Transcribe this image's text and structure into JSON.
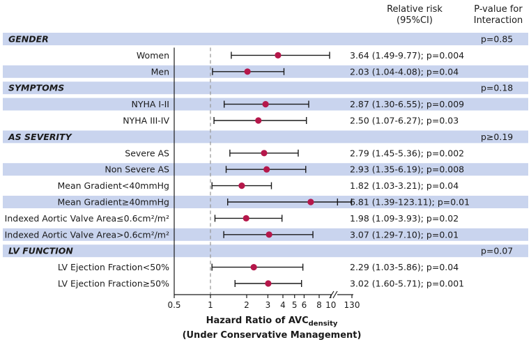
{
  "header": {
    "rr_line1": "Relative risk",
    "rr_line2": "(95%CI)",
    "p_line1": "P-value for",
    "p_line2": "Interaction"
  },
  "colors": {
    "band": "#c9d4ee",
    "marker": "#b5174a",
    "line": "#1a1a1a",
    "ref": "#9a9a9a"
  },
  "chart_data": {
    "type": "forest",
    "x_scale": "log",
    "xlim": [
      0.5,
      130
    ],
    "reference_line": 1,
    "xticks": [
      "0.5",
      "1",
      "2",
      "3",
      "4",
      "5",
      "6",
      "8",
      "10",
      "130"
    ],
    "xlabel_main": "Hazard Ratio of AVC",
    "xlabel_sub": "density",
    "xlabel_line2": "(Under Conservative Management)",
    "rows": [
      {
        "type": "group",
        "label": "GENDER",
        "p": "p=0.85"
      },
      {
        "type": "item",
        "label": "Women",
        "hr": 3.64,
        "lo": 1.49,
        "hi": 9.77,
        "text": "3.64 (1.49-9.77); p=0.004"
      },
      {
        "type": "item",
        "label": "Men",
        "hr": 2.03,
        "lo": 1.04,
        "hi": 4.08,
        "text": "2.03 (1.04-4.08); p=0.04"
      },
      {
        "type": "group",
        "label": "SYMPTOMS",
        "p": "p=0.18"
      },
      {
        "type": "item",
        "label": "NYHA I-II",
        "hr": 2.87,
        "lo": 1.3,
        "hi": 6.55,
        "text": "2.87 (1.30-6.55); p=0.009"
      },
      {
        "type": "item",
        "label": "NYHA III-IV",
        "hr": 2.5,
        "lo": 1.07,
        "hi": 6.27,
        "text": "2.50 (1.07-6.27); p=0.03"
      },
      {
        "type": "group",
        "label": "AS SEVERITY",
        "p": "p≥0.19"
      },
      {
        "type": "item",
        "label": "Severe AS",
        "hr": 2.79,
        "lo": 1.45,
        "hi": 5.36,
        "text": "2.79 (1.45-5.36); p=0.002"
      },
      {
        "type": "item",
        "label": "Non Severe AS",
        "hr": 2.93,
        "lo": 1.35,
        "hi": 6.19,
        "text": "2.93 (1.35-6.19); p=0.008"
      },
      {
        "type": "item",
        "label": "Mean Gradient<40mmHg",
        "hr": 1.82,
        "lo": 1.03,
        "hi": 3.21,
        "text": "1.82 (1.03-3.21); p=0.04"
      },
      {
        "type": "item",
        "label": "Mean Gradient≥40mmHg",
        "hr": 6.81,
        "lo": 1.39,
        "hi": 123.11,
        "text": "6.81 (1.39-123.11); p=0.01"
      },
      {
        "type": "item",
        "label": "Indexed Aortic Valve Area≤0.6cm²/m²",
        "hr": 1.98,
        "lo": 1.09,
        "hi": 3.93,
        "text": "1.98 (1.09-3.93); p=0.02"
      },
      {
        "type": "item",
        "label": "Indexed Aortic Valve Area>0.6cm²/m²",
        "hr": 3.07,
        "lo": 1.29,
        "hi": 7.1,
        "text": "3.07 (1.29-7.10); p=0.01"
      },
      {
        "type": "group",
        "label": "LV FUNCTION",
        "p": "p=0.07"
      },
      {
        "type": "item",
        "label": "LV Ejection Fraction<50%",
        "hr": 2.29,
        "lo": 1.03,
        "hi": 5.86,
        "text": "2.29 (1.03-5.86); p=0.04"
      },
      {
        "type": "item",
        "label": "LV Ejection Fraction≥50%",
        "hr": 3.02,
        "lo": 1.6,
        "hi": 5.71,
        "text": "3.02 (1.60-5.71); p=0.001"
      }
    ]
  }
}
